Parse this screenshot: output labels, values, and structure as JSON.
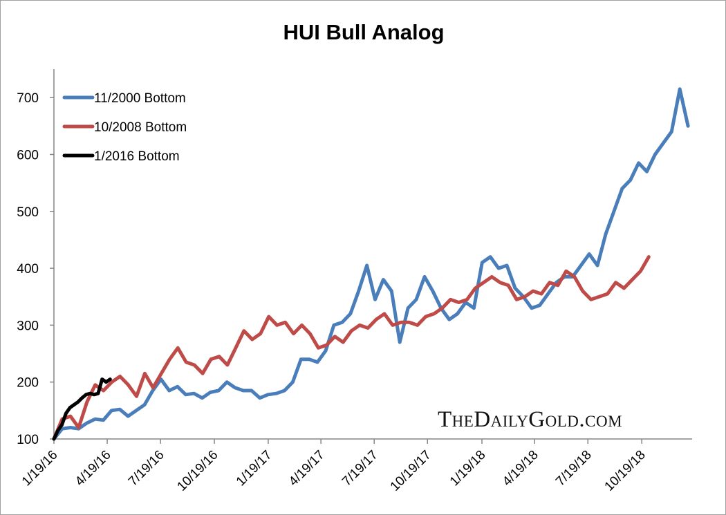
{
  "chart_data": {
    "type": "line",
    "title": "HUI Bull Analog",
    "xlabel": "",
    "ylabel": "",
    "ylim": [
      100,
      750
    ],
    "yticks": [
      100,
      200,
      300,
      400,
      500,
      600,
      700
    ],
    "x_unit": "days since 1/19/16",
    "xlim": [
      0,
      1090
    ],
    "xtick_labels": [
      "1/19/16",
      "4/19/16",
      "7/19/16",
      "10/19/16",
      "1/19/17",
      "4/19/17",
      "7/19/17",
      "10/19/17",
      "1/19/18",
      "4/19/18",
      "7/19/18",
      "10/19/18"
    ],
    "xtick_days": [
      0,
      91,
      182,
      274,
      366,
      456,
      547,
      638,
      731,
      821,
      912,
      1004
    ],
    "legend_position": "top-left",
    "grid": false,
    "series": [
      {
        "name": "11/2000 Bottom",
        "color": "#4a7ebb",
        "span_days": 1083,
        "values": [
          100,
          118,
          120,
          118,
          128,
          135,
          133,
          150,
          152,
          140,
          150,
          160,
          185,
          205,
          185,
          192,
          178,
          180,
          172,
          182,
          185,
          200,
          190,
          185,
          185,
          172,
          178,
          180,
          185,
          200,
          240,
          240,
          235,
          255,
          300,
          305,
          320,
          360,
          405,
          345,
          380,
          360,
          270,
          330,
          345,
          385,
          360,
          330,
          310,
          320,
          340,
          330,
          410,
          420,
          400,
          405,
          365,
          350,
          330,
          335,
          355,
          375,
          385,
          385,
          405,
          425,
          405,
          460,
          500,
          540,
          555,
          585,
          570,
          600,
          620,
          640,
          715,
          650
        ]
      },
      {
        "name": "10/2008 Bottom",
        "color": "#be4b48",
        "span_days": 1016,
        "values": [
          100,
          135,
          140,
          120,
          165,
          195,
          185,
          200,
          210,
          195,
          175,
          215,
          190,
          215,
          240,
          260,
          235,
          230,
          215,
          240,
          245,
          230,
          260,
          290,
          275,
          285,
          315,
          300,
          305,
          285,
          300,
          285,
          260,
          265,
          280,
          270,
          290,
          300,
          295,
          310,
          320,
          300,
          305,
          305,
          300,
          315,
          320,
          330,
          345,
          340,
          345,
          365,
          375,
          385,
          375,
          370,
          345,
          350,
          360,
          355,
          375,
          370,
          395,
          385,
          360,
          345,
          350,
          355,
          375,
          365,
          380,
          395,
          420
        ]
      },
      {
        "name": "1/2016 Bottom",
        "color": "#000000",
        "span_days": 96,
        "values": [
          100,
          115,
          125,
          145,
          155,
          160,
          165,
          172,
          178,
          180,
          178,
          180,
          205,
          200,
          205
        ]
      }
    ],
    "watermark": "TheDailyGold.com"
  }
}
